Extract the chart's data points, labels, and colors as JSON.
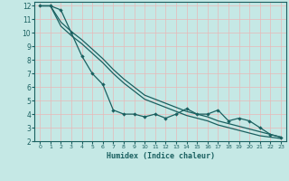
{
  "xlabel": "Humidex (Indice chaleur)",
  "xlim": [
    -0.5,
    23.5
  ],
  "ylim": [
    2,
    12.3
  ],
  "yticks": [
    2,
    3,
    4,
    5,
    6,
    7,
    8,
    9,
    10,
    11,
    12
  ],
  "xticks": [
    0,
    1,
    2,
    3,
    4,
    5,
    6,
    7,
    8,
    9,
    10,
    11,
    12,
    13,
    14,
    15,
    16,
    17,
    18,
    19,
    20,
    21,
    22,
    23
  ],
  "bg_color": "#c5e8e5",
  "grid_color": "#e8b8b8",
  "line_color": "#1a6060",
  "line1_x": [
    0,
    1,
    2,
    3,
    4,
    5,
    6,
    7,
    8,
    9,
    10,
    11,
    12,
    13,
    14,
    15,
    16,
    17,
    18,
    19,
    20,
    21,
    22,
    23
  ],
  "line1_y": [
    12,
    12,
    11.7,
    10,
    8.3,
    7.0,
    6.2,
    4.3,
    4.0,
    4.0,
    3.8,
    4.0,
    3.7,
    4.0,
    4.4,
    4.0,
    4.0,
    4.3,
    3.5,
    3.7,
    3.5,
    3.0,
    2.5,
    2.3
  ],
  "line2_x": [
    0,
    1,
    2,
    3,
    4,
    5,
    6,
    7,
    8,
    9,
    10,
    11,
    12,
    13,
    14,
    15,
    16,
    17,
    18,
    19,
    20,
    21,
    22,
    23
  ],
  "line2_y": [
    12,
    12,
    10.8,
    10.1,
    9.5,
    8.8,
    8.1,
    7.3,
    6.6,
    6.0,
    5.4,
    5.1,
    4.8,
    4.5,
    4.2,
    4.0,
    3.8,
    3.5,
    3.3,
    3.1,
    2.9,
    2.7,
    2.5,
    2.3
  ],
  "line3_x": [
    0,
    1,
    2,
    3,
    4,
    5,
    6,
    7,
    8,
    9,
    10,
    11,
    12,
    13,
    14,
    15,
    16,
    17,
    18,
    19,
    20,
    21,
    22,
    23
  ],
  "line3_y": [
    12,
    12,
    10.5,
    9.8,
    9.2,
    8.5,
    7.8,
    7.0,
    6.3,
    5.7,
    5.1,
    4.8,
    4.5,
    4.2,
    3.9,
    3.7,
    3.5,
    3.2,
    3.0,
    2.8,
    2.6,
    2.4,
    2.3,
    2.2
  ]
}
